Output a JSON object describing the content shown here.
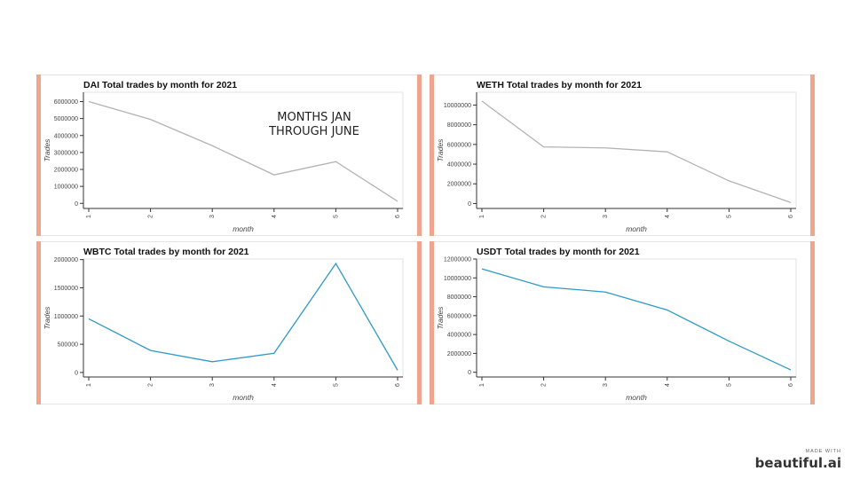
{
  "colors": {
    "accent": "#f0a58e",
    "gray_line": "#b3b3b3",
    "blue_line": "#2f9ac6"
  },
  "overlay_text": [
    "MONTHS JAN",
    "THROUGH JUNE"
  ],
  "branding": {
    "made_with": "MADE WITH",
    "name": "beautiful.ai"
  },
  "chart_data": [
    {
      "id": "dai",
      "type": "line",
      "title": "DAI Total trades by month for 2021",
      "xlabel": "month",
      "ylabel": "Trades",
      "x": [
        1,
        2,
        3,
        4,
        5,
        6
      ],
      "series": [
        {
          "values": [
            6000000,
            4950000,
            3400000,
            1680000,
            2460000,
            120000
          ]
        }
      ],
      "ylim": [
        -300000,
        6550000
      ],
      "yticks": [
        0,
        1000000,
        2000000,
        3000000,
        4000000,
        5000000,
        6000000
      ],
      "ytick_labels": [
        "0",
        "1000000",
        "2000000",
        "3000000",
        "4000000",
        "5000000",
        "6000000"
      ],
      "color": "#b3b3b3"
    },
    {
      "id": "weth",
      "type": "line",
      "title": "WETH Total trades by month for 2021",
      "xlabel": "month",
      "ylabel": "Trades",
      "x": [
        1,
        2,
        3,
        4,
        5,
        6
      ],
      "series": [
        {
          "values": [
            10400000,
            5750000,
            5650000,
            5250000,
            2300000,
            100000
          ]
        }
      ],
      "ylim": [
        -500000,
        11300000
      ],
      "yticks": [
        0,
        2000000,
        4000000,
        6000000,
        8000000,
        10000000
      ],
      "ytick_labels": [
        "0",
        "2000000",
        "4000000",
        "6000000",
        "8000000",
        "10000000"
      ],
      "color": "#b3b3b3"
    },
    {
      "id": "wbtc",
      "type": "line",
      "title": "WBTC Total trades by month for 2021",
      "xlabel": "month",
      "ylabel": "Trades",
      "x": [
        1,
        2,
        3,
        4,
        5,
        6
      ],
      "series": [
        {
          "values": [
            950000,
            390000,
            190000,
            340000,
            1930000,
            40000
          ]
        }
      ],
      "ylim": [
        -80000,
        2010000
      ],
      "yticks": [
        0,
        500000,
        1000000,
        1500000,
        2000000
      ],
      "ytick_labels": [
        "0",
        "500000",
        "1000000",
        "1500000",
        "2000000"
      ],
      "color": "#2f9ac6"
    },
    {
      "id": "usdt",
      "type": "line",
      "title": "USDT Total trades by month for 2021",
      "xlabel": "month",
      "ylabel": "Trades",
      "x": [
        1,
        2,
        3,
        4,
        5,
        6
      ],
      "series": [
        {
          "values": [
            10950000,
            9050000,
            8500000,
            6600000,
            3300000,
            250000
          ]
        }
      ],
      "ylim": [
        -500000,
        12000000
      ],
      "yticks": [
        0,
        2000000,
        4000000,
        6000000,
        8000000,
        10000000,
        12000000
      ],
      "ytick_labels": [
        "0",
        "2000000",
        "4000000",
        "6000000",
        "8000000",
        "10000000",
        "12000000"
      ],
      "color": "#2f9ac6"
    }
  ]
}
